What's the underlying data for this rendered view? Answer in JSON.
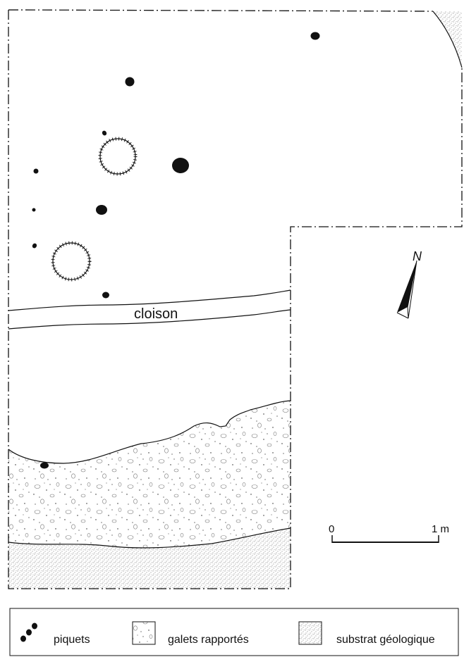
{
  "plan": {
    "wall_label": "cloison",
    "north_label": "N"
  },
  "scale": {
    "start_label": "0",
    "end_label": "1 m"
  },
  "legend": {
    "items": [
      {
        "key": "piquets",
        "label": "piquets"
      },
      {
        "key": "galets",
        "label": "galets rapportés"
      },
      {
        "key": "substrat",
        "label": "substrat géologique"
      }
    ]
  }
}
